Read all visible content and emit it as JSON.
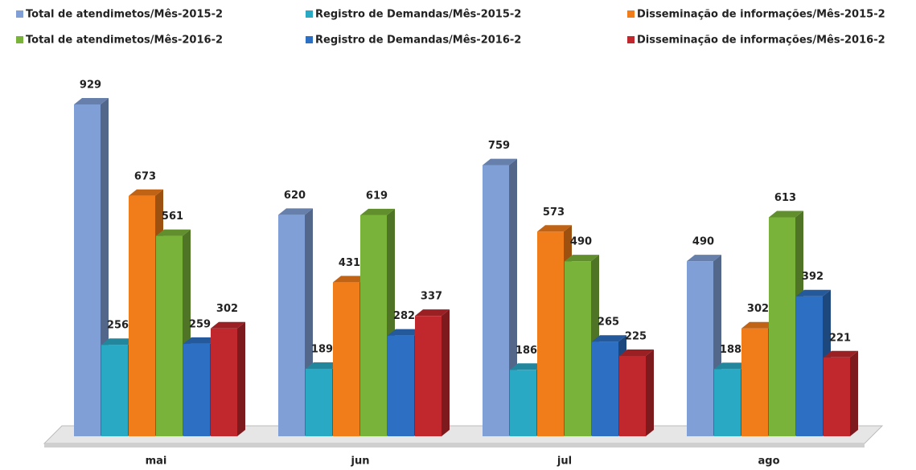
{
  "chart_data": {
    "type": "bar",
    "categories": [
      "mai",
      "jun",
      "jul",
      "ago"
    ],
    "series": [
      {
        "name": "Total de atendimetos/Mês-2015-2",
        "color": "#7f9fd6",
        "values": [
          929,
          620,
          759,
          490
        ]
      },
      {
        "name": "Registro de Demandas/Mês-2015-2",
        "color": "#2aa9c4",
        "values": [
          256,
          189,
          186,
          188
        ]
      },
      {
        "name": "Disseminação de informações/Mês-2015-2",
        "color": "#f07c1a",
        "values": [
          673,
          431,
          573,
          302
        ]
      },
      {
        "name": "Total de atendimetos/Mês-2016-2",
        "color": "#7ab33a",
        "values": [
          561,
          619,
          490,
          613
        ]
      },
      {
        "name": "Registro de Demandas/Mês-2016-2",
        "color": "#2d6fc2",
        "values": [
          259,
          282,
          265,
          392
        ]
      },
      {
        "name": "Disseminação de informações/Mês-2016-2",
        "color": "#c0282d",
        "values": [
          302,
          337,
          225,
          221
        ]
      }
    ]
  }
}
